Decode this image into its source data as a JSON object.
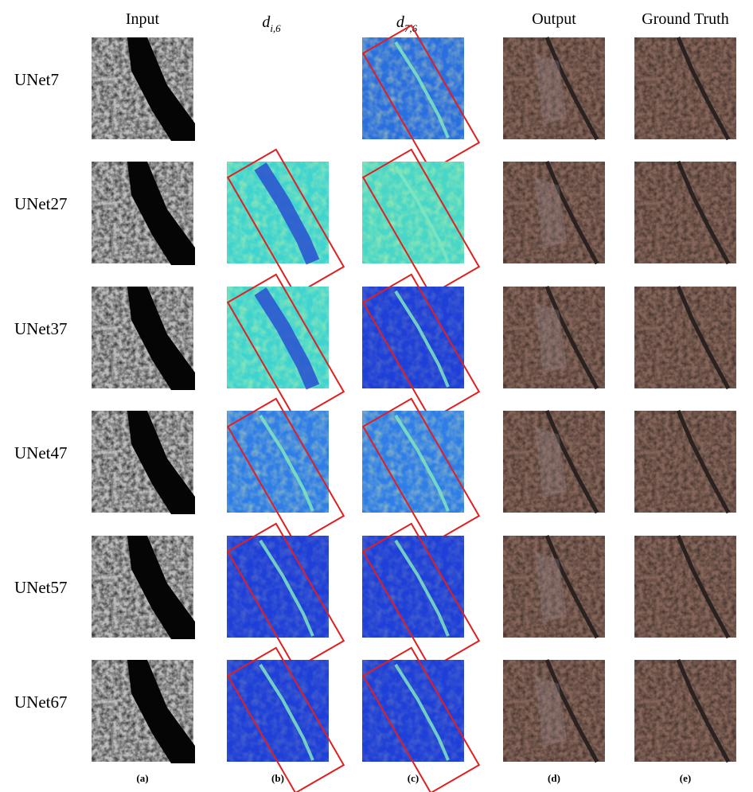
{
  "columns": [
    {
      "text": "Input"
    },
    {
      "base": "d",
      "sub": "i,6"
    },
    {
      "base": "d",
      "sub": "7,6"
    },
    {
      "text": "Output"
    },
    {
      "text": "Ground Truth"
    }
  ],
  "rows": [
    "UNet7",
    "UNet27",
    "UNet37",
    "UNet47",
    "UNet57",
    "UNet67"
  ],
  "panel_labels": [
    "(a)",
    "(b)",
    "(c)",
    "(d)",
    "(e)"
  ]
}
